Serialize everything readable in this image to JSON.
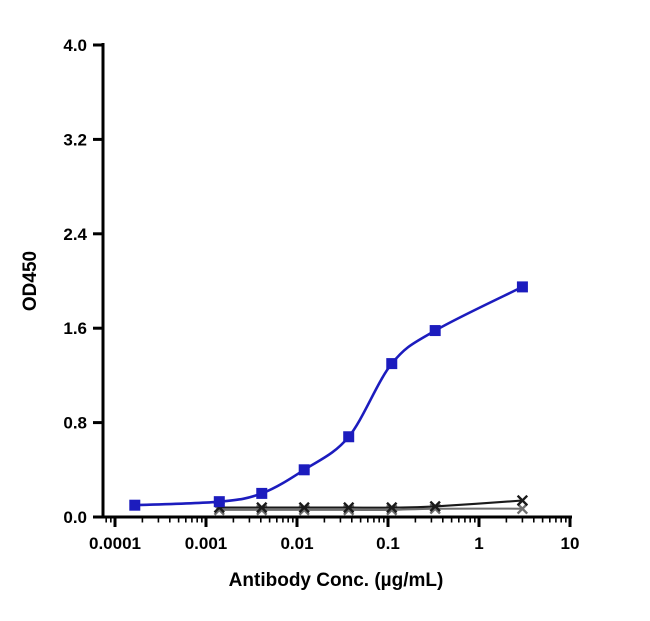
{
  "figure": {
    "background": "#ffffff"
  },
  "chart_data": {
    "type": "line",
    "title": "",
    "xlabel": "Antibody Conc. (µg/mL)",
    "ylabel": "OD450",
    "x_scale": "log10",
    "xlim": [
      7e-05,
      10
    ],
    "ylim": [
      0,
      4
    ],
    "grid": false,
    "legend": "none",
    "x_ticks": [
      0.0001,
      0.001,
      0.01,
      0.1,
      1,
      10
    ],
    "x_tick_labels": [
      "0.0001",
      "0.001",
      "0.01",
      "0.1",
      "1",
      "10"
    ],
    "y_ticks": [
      0,
      0.8,
      1.6,
      2.4,
      3.2,
      4.0
    ],
    "y_tick_labels": [
      "0.0",
      "0.8",
      "1.6",
      "2.4",
      "3.2",
      "4.0"
    ],
    "series": [
      {
        "name": "gray-x-control",
        "color": "#6e6e6e",
        "marker": "x",
        "line_width": 2.0,
        "x": [
          0.0014,
          0.0041,
          0.012,
          0.037,
          0.11,
          0.33,
          3.0
        ],
        "y": [
          0.06,
          0.06,
          0.06,
          0.06,
          0.06,
          0.07,
          0.07
        ]
      },
      {
        "name": "black-x-control",
        "color": "#1a1a1a",
        "marker": "x",
        "line_width": 2.1,
        "x": [
          0.0014,
          0.0041,
          0.012,
          0.037,
          0.11,
          0.33,
          3.0
        ],
        "y": [
          0.08,
          0.08,
          0.08,
          0.08,
          0.08,
          0.09,
          0.14
        ]
      },
      {
        "name": "blue-squares-binding",
        "color": "#1c1cbe",
        "marker": "square",
        "line_width": 2.6,
        "x": [
          0.000165,
          0.0014,
          0.0041,
          0.012,
          0.037,
          0.11,
          0.33,
          3.0
        ],
        "y": [
          0.1,
          0.13,
          0.2,
          0.4,
          0.68,
          1.3,
          1.58,
          1.95
        ]
      }
    ]
  }
}
